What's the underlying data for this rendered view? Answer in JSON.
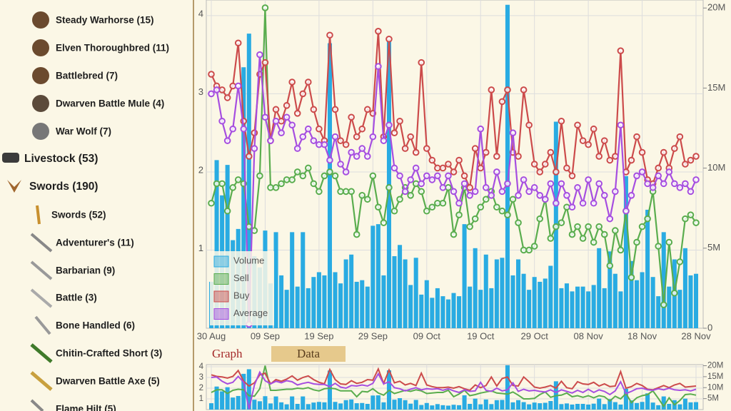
{
  "sidebar": {
    "items": [
      "Steady Warhorse (15)",
      "Elven Thoroughbred (11)",
      "Battlebred (7)",
      "Dwarven Battle Mule (4)",
      "War Wolf (7)",
      "Livestock (53)",
      "Swords (190)",
      "Swords (52)",
      "Adventurer's (11)",
      "Barbarian (9)",
      "Battle (3)",
      "Bone Handled (6)",
      "Chitin-Crafted Short (3)",
      "Dwarven Battle Axe (5)",
      "Flame Hilt (5)"
    ]
  },
  "tabs": [
    "Graph",
    "Data"
  ],
  "chart_data": {
    "type": "combo",
    "categories": [
      "30 Aug",
      "31 Aug",
      "01 Sep",
      "02 Sep",
      "03 Sep",
      "04 Sep",
      "05 Sep",
      "06 Sep",
      "07 Sep",
      "08 Sep",
      "09 Sep",
      "10 Sep",
      "11 Sep",
      "12 Sep",
      "13 Sep",
      "14 Sep",
      "15 Sep",
      "16 Sep",
      "17 Sep",
      "18 Sep",
      "19 Sep",
      "20 Sep",
      "21 Sep",
      "22 Sep",
      "23 Sep",
      "24 Sep",
      "25 Sep",
      "26 Sep",
      "27 Sep",
      "28 Sep",
      "29 Sep",
      "30 Sep",
      "01 Oct",
      "02 Oct",
      "03 Oct",
      "04 Oct",
      "05 Oct",
      "06 Oct",
      "07 Oct",
      "08 Oct",
      "09 Oct",
      "10 Oct",
      "11 Oct",
      "12 Oct",
      "13 Oct",
      "14 Oct",
      "15 Oct",
      "16 Oct",
      "17 Oct",
      "18 Oct",
      "19 Oct",
      "20 Oct",
      "21 Oct",
      "22 Oct",
      "23 Oct",
      "24 Oct",
      "25 Oct",
      "26 Oct",
      "27 Oct",
      "28 Oct",
      "29 Oct",
      "30 Oct",
      "31 Oct",
      "01 Nov",
      "02 Nov",
      "03 Nov",
      "04 Nov",
      "05 Nov",
      "06 Nov",
      "07 Nov",
      "08 Nov",
      "09 Nov",
      "10 Nov",
      "11 Nov",
      "12 Nov",
      "13 Nov",
      "14 Nov",
      "15 Nov",
      "16 Nov",
      "17 Nov",
      "18 Nov",
      "19 Nov",
      "20 Nov",
      "21 Nov",
      "22 Nov",
      "23 Nov",
      "24 Nov",
      "25 Nov",
      "26 Nov",
      "27 Nov",
      "28 Nov"
    ],
    "xticks": [
      "30 Aug",
      "09 Sep",
      "19 Sep",
      "29 Sep",
      "09 Oct",
      "19 Oct",
      "29 Oct",
      "08 Nov",
      "18 Nov",
      "28 Nov"
    ],
    "series": [
      {
        "name": "Volume",
        "type": "bar",
        "axis": "y2",
        "color": "#29abe2",
        "values": [
          2.9,
          10.5,
          8.3,
          10.2,
          5.5,
          6.2,
          16.3,
          18.4,
          4.5,
          3.8,
          6.1,
          2.8,
          6.0,
          3.3,
          2.4,
          6.0,
          2.6,
          6.0,
          2.5,
          3.2,
          3.5,
          3.3,
          17.8,
          3.5,
          2.8,
          4.3,
          4.6,
          2.9,
          3.0,
          2.6,
          6.4,
          6.5,
          3.3,
          17.9,
          4.5,
          5.2,
          4.3,
          2.7,
          4.4,
          2.1,
          3.0,
          1.9,
          2.5,
          2.0,
          1.8,
          2.2,
          2.0,
          6.5,
          2.6,
          5.0,
          2.4,
          4.6,
          2.5,
          4.3,
          4.4,
          20.2,
          3.3,
          4.3,
          3.4,
          2.4,
          3.2,
          2.9,
          3.1,
          3.9,
          12.9,
          2.5,
          2.8,
          2.3,
          2.6,
          2.6,
          2.3,
          2.7,
          5.0,
          2.5,
          4.8,
          3.4,
          2.3,
          9.5,
          4.2,
          3.0,
          3.5,
          7.4,
          3.2,
          2.0,
          6.0,
          2.6,
          4.3,
          2.4,
          5.0,
          3.3,
          3.4
        ]
      },
      {
        "name": "Sell",
        "type": "line",
        "color": "#5aad4e",
        "values": [
          1.6,
          1.85,
          1.85,
          1.5,
          1.8,
          1.9,
          1.85,
          1.3,
          1.25,
          1.95,
          4.1,
          1.8,
          1.8,
          1.85,
          1.9,
          1.9,
          2.0,
          1.95,
          2.05,
          1.85,
          1.75,
          1.95,
          2.0,
          1.95,
          1.75,
          1.75,
          1.75,
          1.2,
          1.7,
          1.65,
          1.95,
          1.55,
          1.35,
          1.8,
          1.5,
          1.65,
          1.8,
          1.7,
          1.85,
          1.75,
          1.5,
          1.55,
          1.6,
          1.6,
          1.8,
          1.2,
          1.45,
          1.8,
          1.3,
          1.4,
          1.55,
          1.65,
          1.75,
          1.55,
          1.5,
          1.45,
          1.65,
          1.35,
          1.0,
          1.0,
          1.05,
          1.4,
          1.65,
          1.15,
          1.3,
          1.35,
          1.55,
          1.2,
          1.3,
          1.15,
          1.3,
          1.1,
          1.3,
          1.2,
          0.8,
          1.25,
          1.0,
          1.5,
          0.65,
          1.1,
          1.3,
          1.4,
          1.75,
          1.05,
          0.3,
          1.1,
          0.45,
          0.85,
          1.4,
          1.45,
          1.35
        ]
      },
      {
        "name": "Buy",
        "type": "line",
        "color": "#cc4b4b",
        "values": [
          3.25,
          3.1,
          3.05,
          2.95,
          3.1,
          3.65,
          2.65,
          2.2,
          2.5,
          3.25,
          3.4,
          2.4,
          2.8,
          2.65,
          2.85,
          3.15,
          2.75,
          3.0,
          3.15,
          2.8,
          2.55,
          2.4,
          3.75,
          2.8,
          2.4,
          2.35,
          2.7,
          2.45,
          2.55,
          2.8,
          2.75,
          3.8,
          2.45,
          3.7,
          2.5,
          2.65,
          2.3,
          2.45,
          2.25,
          3.4,
          2.3,
          2.15,
          2.05,
          2.05,
          2.1,
          2.0,
          2.15,
          1.95,
          1.8,
          2.3,
          2.05,
          2.25,
          3.05,
          2.2,
          2.9,
          3.05,
          2.25,
          2.2,
          3.05,
          2.6,
          2.1,
          2.0,
          2.1,
          2.25,
          2.0,
          2.65,
          2.05,
          1.95,
          2.6,
          2.4,
          2.35,
          2.55,
          2.2,
          2.4,
          2.15,
          2.2,
          3.55,
          2.0,
          2.15,
          2.45,
          2.25,
          1.9,
          1.85,
          2.05,
          2.25,
          2.05,
          2.3,
          2.45,
          2.1,
          2.15,
          2.2
        ]
      },
      {
        "name": "Average",
        "type": "line",
        "color": "#a64ee0",
        "values": [
          3.0,
          3.05,
          2.65,
          2.4,
          2.55,
          3.1,
          2.55,
          0.05,
          2.3,
          3.5,
          2.7,
          2.4,
          2.65,
          2.5,
          2.7,
          2.6,
          2.3,
          2.45,
          2.55,
          2.4,
          2.35,
          2.35,
          2.15,
          2.45,
          2.1,
          2.0,
          2.25,
          2.2,
          2.3,
          2.2,
          2.45,
          3.35,
          2.4,
          2.6,
          2.05,
          1.95,
          1.75,
          1.9,
          2.05,
          1.85,
          1.95,
          1.9,
          1.95,
          1.8,
          1.95,
          1.75,
          1.6,
          1.85,
          1.7,
          1.75,
          2.55,
          1.8,
          1.7,
          2.0,
          1.75,
          1.85,
          2.5,
          1.7,
          1.9,
          1.75,
          1.8,
          1.7,
          1.65,
          1.85,
          1.6,
          1.85,
          1.7,
          1.55,
          1.8,
          1.6,
          1.9,
          1.6,
          1.85,
          1.7,
          1.4,
          1.75,
          2.6,
          1.5,
          1.7,
          1.95,
          2.0,
          1.85,
          1.8,
          1.95,
          1.85,
          2.0,
          1.85,
          1.8,
          1.85,
          1.75,
          1.9
        ]
      }
    ],
    "ylim": [
      0,
      4.2
    ],
    "yticks": [
      1,
      2,
      3,
      4
    ],
    "y2lim": [
      0,
      20.5
    ],
    "y2ticks": [
      0,
      {
        "value": 5,
        "label": "5M"
      },
      {
        "value": 10,
        "label": "10M"
      },
      {
        "value": 15,
        "label": "15M"
      },
      {
        "value": 20,
        "label": "20M"
      }
    ],
    "grid": true
  }
}
